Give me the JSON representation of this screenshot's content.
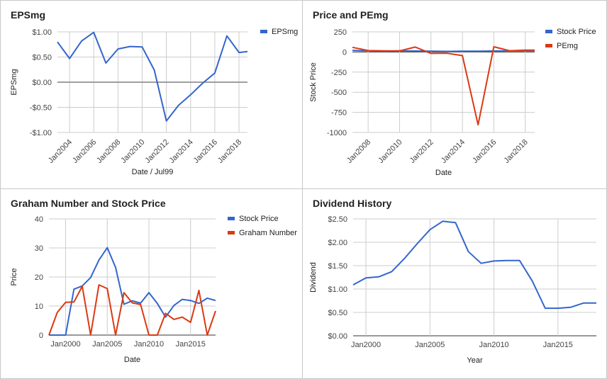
{
  "chart_data": [
    {
      "type": "line",
      "title": "EPSmg",
      "xlabel": "Date / Jul99",
      "ylabel": "EPSmg",
      "x_ticks": [
        "Jan2004",
        "Jan2006",
        "Jan2008",
        "Jan2010",
        "Jan2012",
        "Jan2014",
        "Jan2016",
        "Jan2018"
      ],
      "y_ticks": [
        "$1.00",
        "$0.50",
        "$0.00",
        "-$0.50",
        "-$1.00"
      ],
      "xlim": [
        2003.0,
        2018.7
      ],
      "ylim": [
        -1.0,
        1.0
      ],
      "legend_position": "top-right",
      "series": [
        {
          "name": "EPSmg",
          "color": "#3366cc",
          "x": [
            2003.0,
            2004.0,
            2005.0,
            2006.0,
            2007.0,
            2008.0,
            2009.0,
            2010.0,
            2011.0,
            2012.0,
            2013.0,
            2014.0,
            2015.0,
            2016.0,
            2017.0,
            2018.0,
            2018.7
          ],
          "y": [
            0.8,
            0.47,
            0.82,
            0.99,
            0.38,
            0.66,
            0.71,
            0.7,
            0.24,
            -0.77,
            -0.46,
            -0.25,
            -0.02,
            0.18,
            0.92,
            0.59,
            0.61
          ]
        }
      ],
      "reference_line": 0
    },
    {
      "type": "line",
      "title": "Price and PEmg",
      "xlabel": "Date",
      "ylabel": "Stock Price",
      "x_ticks": [
        "Jan2008",
        "Jan2010",
        "Jan2012",
        "Jan2014",
        "Jan2016",
        "Jan2018"
      ],
      "y_ticks": [
        "250",
        "0",
        "-250",
        "-500",
        "-750",
        "-1000"
      ],
      "xlim": [
        2007.0,
        2018.6
      ],
      "ylim": [
        -1000,
        250
      ],
      "legend_position": "top-right",
      "series": [
        {
          "name": "Stock Price",
          "color": "#3366cc",
          "x": [
            2007.0,
            2008.0,
            2009.0,
            2010.0,
            2011.0,
            2012.0,
            2013.0,
            2014.0,
            2015.0,
            2016.0,
            2017.0,
            2018.0,
            2018.6
          ],
          "y": [
            20,
            14,
            11,
            15,
            12,
            11,
            8,
            10,
            11,
            12,
            14,
            15,
            14
          ]
        },
        {
          "name": "PEmg",
          "color": "#dc3912",
          "x": [
            2007.0,
            2008.0,
            2009.0,
            2010.0,
            2011.0,
            2012.0,
            2013.0,
            2014.0,
            2015.0,
            2016.0,
            2017.0,
            2018.0,
            2018.6
          ],
          "y": [
            58,
            18,
            15,
            13,
            62,
            -18,
            -15,
            -45,
            -905,
            65,
            16,
            24,
            23
          ]
        }
      ]
    },
    {
      "type": "line",
      "title": "Graham Number and Stock Price",
      "xlabel": "Date",
      "ylabel": "Price",
      "x_ticks": [
        "Jan2000",
        "Jan2005",
        "Jan2010",
        "Jan2015"
      ],
      "y_ticks": [
        "40",
        "30",
        "20",
        "10",
        "0"
      ],
      "xlim": [
        1998.0,
        2018.0
      ],
      "ylim": [
        0,
        40
      ],
      "legend_position": "top-right",
      "series": [
        {
          "name": "Stock Price",
          "color": "#3366cc",
          "x": [
            1998.0,
            1999.0,
            2000.0,
            2001.0,
            2002.0,
            2003.0,
            2004.0,
            2005.0,
            2006.0,
            2007.0,
            2008.0,
            2009.0,
            2010.0,
            2011.0,
            2012.0,
            2013.0,
            2014.0,
            2015.0,
            2016.0,
            2017.0,
            2018.0
          ],
          "y": [
            0.0,
            0.0,
            0.0,
            15.8,
            16.9,
            19.8,
            25.8,
            30.1,
            23.3,
            10.6,
            11.8,
            11.0,
            14.6,
            10.9,
            6.2,
            10.2,
            12.3,
            11.9,
            10.9,
            12.7,
            11.9
          ]
        },
        {
          "name": "Graham Number",
          "color": "#dc3912",
          "x": [
            1998.0,
            1999.0,
            2000.0,
            2001.0,
            2002.0,
            2003.0,
            2004.0,
            2005.0,
            2006.0,
            2007.0,
            2008.0,
            2009.0,
            2010.0,
            2011.0,
            2012.0,
            2013.0,
            2014.0,
            2015.0,
            2016.0,
            2017.0,
            2018.0
          ],
          "y": [
            0.0,
            7.8,
            11.3,
            11.4,
            16.8,
            0.0,
            17.3,
            16.0,
            0.0,
            14.6,
            11.1,
            10.5,
            0.0,
            0.0,
            7.5,
            5.4,
            6.2,
            4.4,
            15.4,
            0.0,
            8.3
          ]
        }
      ]
    },
    {
      "type": "line",
      "title": "Dividend History",
      "xlabel": "Year",
      "ylabel": "Dividend",
      "x_ticks": [
        "Jan2000",
        "Jan2005",
        "Jan2010",
        "Jan2015"
      ],
      "y_ticks": [
        "$2.50",
        "$2.00",
        "$1.50",
        "$1.00",
        "$0.50",
        "$0.00"
      ],
      "xlim": [
        1999.0,
        2018.0
      ],
      "ylim": [
        0,
        2.5
      ],
      "series": [
        {
          "name": "Dividend",
          "color": "#3366cc",
          "x": [
            1999.0,
            2000.0,
            2001.0,
            2002.0,
            2003.0,
            2004.0,
            2005.0,
            2006.0,
            2007.0,
            2008.0,
            2009.0,
            2010.0,
            2011.0,
            2012.0,
            2013.0,
            2014.0,
            2015.0,
            2016.0,
            2017.0,
            2018.0
          ],
          "y": [
            1.09,
            1.24,
            1.26,
            1.37,
            1.65,
            1.97,
            2.27,
            2.45,
            2.42,
            1.8,
            1.55,
            1.6,
            1.61,
            1.61,
            1.17,
            0.59,
            0.59,
            0.61,
            0.7,
            0.7
          ]
        }
      ]
    }
  ]
}
